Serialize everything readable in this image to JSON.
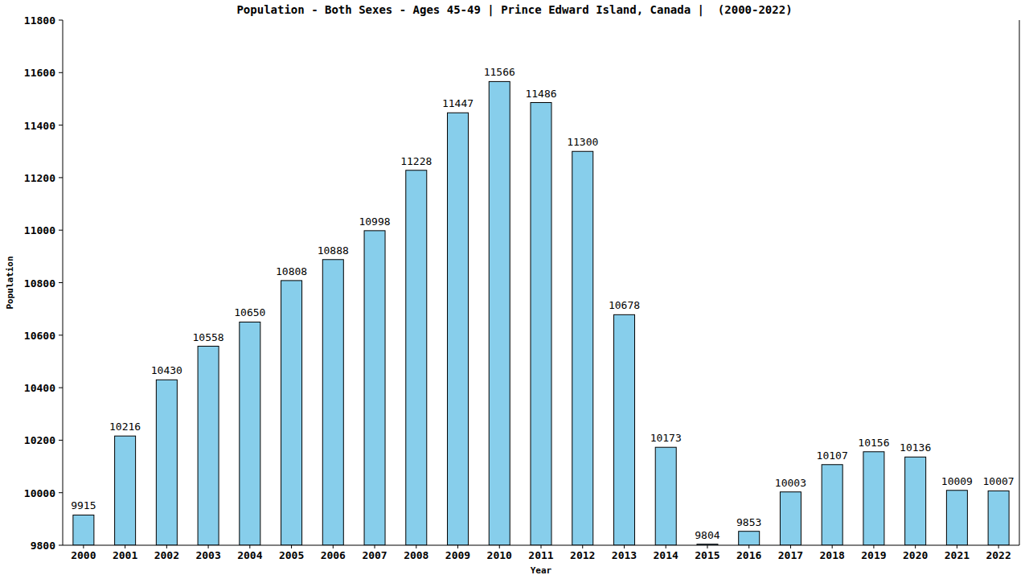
{
  "chart_data": {
    "type": "bar",
    "title": "Population - Both Sexes - Ages 45-49 | Prince Edward Island, Canada |  (2000-2022)",
    "x_label": "Year",
    "y_label": "Population",
    "categories": [
      "2000",
      "2001",
      "2002",
      "2003",
      "2004",
      "2005",
      "2006",
      "2007",
      "2008",
      "2009",
      "2010",
      "2011",
      "2012",
      "2013",
      "2014",
      "2015",
      "2016",
      "2017",
      "2018",
      "2019",
      "2020",
      "2021",
      "2022"
    ],
    "values": [
      9915,
      10216,
      10430,
      10558,
      10650,
      10808,
      10888,
      10998,
      11228,
      11447,
      11566,
      11486,
      11300,
      10678,
      10173,
      9804,
      9853,
      10003,
      10107,
      10156,
      10136,
      10009,
      10007
    ],
    "color": "#87ceeb",
    "ylim": [
      9800,
      11800
    ],
    "yticks": [
      9800,
      10000,
      10200,
      10400,
      10600,
      10800,
      11000,
      11200,
      11400,
      11600,
      11800
    ],
    "grid": false,
    "data_labels": true
  }
}
